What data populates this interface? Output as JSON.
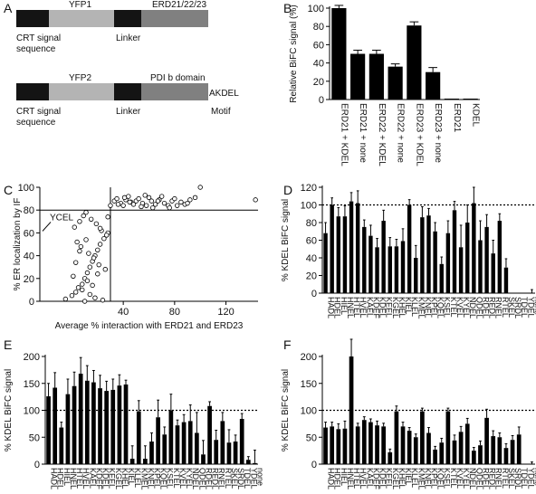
{
  "panel_letters": [
    "A",
    "B",
    "C",
    "D",
    "E",
    "F"
  ],
  "panel_a": {
    "construct1": {
      "segments": [
        {
          "label": "",
          "color": "#141414"
        },
        {
          "label": "YFP1",
          "color": "#b4b4b4"
        },
        {
          "label": "",
          "color": "#141414"
        },
        {
          "label": "ERD21/22/23",
          "color": "#808080"
        }
      ],
      "left_caption": [
        "CRT signal",
        "sequence"
      ],
      "mid_caption": "Linker"
    },
    "construct2": {
      "segments": [
        {
          "label": "",
          "color": "#141414"
        },
        {
          "label": "YFP2",
          "color": "#b4b4b4"
        },
        {
          "label": "",
          "color": "#141414"
        },
        {
          "label": "PDI b domain",
          "color": "#808080"
        }
      ],
      "end_label": "AKDEL",
      "left_caption": [
        "CRT signal",
        "sequence"
      ],
      "mid_caption": "Linker",
      "end_caption": "Motif"
    }
  },
  "chart_data": [
    {
      "panel": "B",
      "type": "bar",
      "ylabel": "Relative BiFC signal (%)",
      "ylim": [
        0,
        100
      ],
      "yticks": [
        0,
        20,
        40,
        60,
        80,
        100
      ],
      "categories": [
        "ERD21 + KDEL",
        "ERD21 + none",
        "ERD22 + KDEL",
        "ERD22 + none",
        "ERD23 + KDEL",
        "ERD23 + none",
        "ERD21",
        "KDEL"
      ],
      "values": [
        100,
        50,
        50,
        36,
        81,
        30,
        1,
        1
      ],
      "errors": [
        3,
        4,
        4,
        3,
        4,
        5,
        0,
        0
      ],
      "color": "#000000"
    },
    {
      "panel": "C",
      "type": "scatter",
      "xlabel": "Average % interaction with ERD21 and ERD23",
      "ylabel": "% ER localization by IF",
      "xlim": [
        -25,
        145
      ],
      "ylim": [
        0,
        100
      ],
      "xticks": [
        40,
        80,
        120
      ],
      "yticks": [
        0,
        20,
        40,
        60,
        80,
        100
      ],
      "hline": 80,
      "vline": 30,
      "annotation": "YCEL",
      "annotation_point": [
        -25,
        60
      ],
      "x": [
        -5,
        0,
        3,
        5,
        8,
        10,
        12,
        14,
        16,
        18,
        20,
        22,
        25,
        28,
        2,
        6,
        9,
        11,
        15,
        19,
        23,
        27,
        4,
        7,
        13,
        17,
        21,
        26,
        1,
        12,
        8,
        14,
        18,
        24,
        10,
        16,
        20,
        3,
        6,
        11,
        22,
        28,
        30,
        33,
        35,
        38,
        40,
        42,
        44,
        46,
        48,
        50,
        52,
        55,
        58,
        60,
        62,
        65,
        68,
        70,
        72,
        75,
        78,
        80,
        85,
        88,
        92,
        96,
        100,
        143,
        36,
        45,
        54,
        63,
        82,
        90,
        41,
        57,
        67,
        76
      ],
      "y": [
        2,
        5,
        8,
        12,
        15,
        20,
        25,
        30,
        35,
        40,
        45,
        50,
        55,
        60,
        65,
        70,
        75,
        78,
        72,
        68,
        62,
        58,
        52,
        48,
        42,
        38,
        32,
        28,
        22,
        18,
        10,
        6,
        3,
        1,
        0,
        14,
        24,
        34,
        44,
        54,
        64,
        74,
        84,
        88,
        90,
        86,
        84,
        89,
        92,
        87,
        85,
        88,
        90,
        86,
        84,
        91,
        88,
        85,
        89,
        92,
        86,
        84,
        88,
        90,
        87,
        85,
        89,
        91,
        100,
        89,
        85,
        87,
        83,
        82,
        84,
        86,
        91,
        93,
        88,
        82
      ]
    },
    {
      "panel": "D",
      "type": "bar",
      "ylabel": "% KDEL BiFC signal",
      "ylim": [
        0,
        120
      ],
      "yticks": [
        0,
        20,
        40,
        60,
        80,
        100,
        120
      ],
      "reference_line": 100,
      "categories": [
        "HADL",
        "HDEL",
        "HIEL",
        "HNEL",
        "HTEL",
        "HVEL",
        "KAEL",
        "KDEF",
        "KDEL",
        "KEEL",
        "KGEL",
        "KHEL",
        "KIEL",
        "KLEL",
        "KMEL",
        "KNEL",
        "KPEL",
        "KQEL",
        "KSEL",
        "KTEL",
        "KVEL",
        "KYEL",
        "NDEL",
        "QDEL",
        "RDEL",
        "REDL",
        "RNEL",
        "RTEL",
        "SKEL",
        "SRDL",
        "TDEL",
        "YDEL",
        "none"
      ],
      "values": [
        68,
        100,
        87,
        87,
        104,
        102,
        75,
        65,
        52,
        82,
        53,
        53,
        59,
        100,
        40,
        86,
        88,
        70,
        33,
        68,
        94,
        52,
        80,
        102,
        60,
        75,
        45,
        82,
        29,
        0,
        0,
        0,
        0
      ],
      "errors": [
        12,
        8,
        10,
        12,
        10,
        14,
        8,
        12,
        10,
        12,
        10,
        8,
        14,
        6,
        14,
        12,
        8,
        10,
        8,
        14,
        10,
        25,
        20,
        18,
        22,
        14,
        15,
        8,
        10,
        0,
        0,
        0,
        4
      ]
    },
    {
      "panel": "E",
      "type": "bar",
      "ylabel": "% KDEL BiFC signal",
      "ylim": [
        0,
        200
      ],
      "yticks": [
        0,
        50,
        100,
        150,
        200
      ],
      "reference_line": 100,
      "categories": [
        "HADL",
        "HDEL",
        "HIEL",
        "HNEL",
        "HTEL",
        "HVEL",
        "KAEL",
        "KDEF",
        "KDEL",
        "KEEL",
        "KGEL",
        "KHEL",
        "KIEL",
        "KLEL",
        "KMEL",
        "KNEL",
        "KPEL",
        "KQEL",
        "KSEL",
        "KTEL",
        "KVEL",
        "KYEL",
        "NDEL",
        "QDEL",
        "RDEL",
        "REDL",
        "RNEL",
        "RTEL",
        "SKEL",
        "SRDL",
        "TDEL",
        "YDEL",
        "none"
      ],
      "values": [
        126,
        142,
        68,
        130,
        145,
        168,
        155,
        152,
        141,
        136,
        138,
        146,
        148,
        10,
        98,
        10,
        42,
        87,
        55,
        100,
        72,
        78,
        80,
        58,
        18,
        108,
        45,
        80,
        40,
        42,
        84,
        8,
        2
      ],
      "errors": [
        24,
        28,
        10,
        28,
        26,
        30,
        28,
        22,
        24,
        18,
        20,
        20,
        8,
        24,
        20,
        24,
        16,
        32,
        14,
        30,
        10,
        14,
        30,
        38,
        26,
        8,
        18,
        16,
        24,
        12,
        10,
        6,
        24
      ]
    },
    {
      "panel": "F",
      "type": "bar",
      "ylabel": "% KDEL BiFC signal",
      "ylim": [
        0,
        200
      ],
      "yticks": [
        0,
        50,
        100,
        150,
        200
      ],
      "reference_line": 100,
      "categories": [
        "HADL",
        "HDEL",
        "HIEL",
        "HNEL",
        "HTEL",
        "HVEL",
        "KAEL",
        "KDEF",
        "KDEL",
        "KEEL",
        "KGEL",
        "KHEL",
        "KIEL",
        "KLEL",
        "KMEL",
        "KNEL",
        "KPEL",
        "KQEL",
        "KSEL",
        "KTEL",
        "KVEL",
        "KYEL",
        "NDEL",
        "QDEL",
        "RDEL",
        "REDL",
        "RNEL",
        "RTEL",
        "SKEL",
        "SRDL",
        "TDEL",
        "YDEL",
        "none"
      ],
      "values": [
        68,
        70,
        65,
        66,
        200,
        70,
        82,
        78,
        72,
        70,
        22,
        98,
        70,
        62,
        50,
        98,
        58,
        27,
        40,
        98,
        44,
        60,
        75,
        25,
        35,
        86,
        52,
        50,
        30,
        45,
        55,
        0,
        0
      ],
      "errors": [
        10,
        8,
        10,
        14,
        32,
        6,
        6,
        6,
        8,
        6,
        6,
        10,
        8,
        6,
        6,
        6,
        10,
        6,
        8,
        6,
        10,
        10,
        10,
        6,
        8,
        16,
        10,
        8,
        8,
        8,
        14,
        0,
        4
      ]
    }
  ]
}
